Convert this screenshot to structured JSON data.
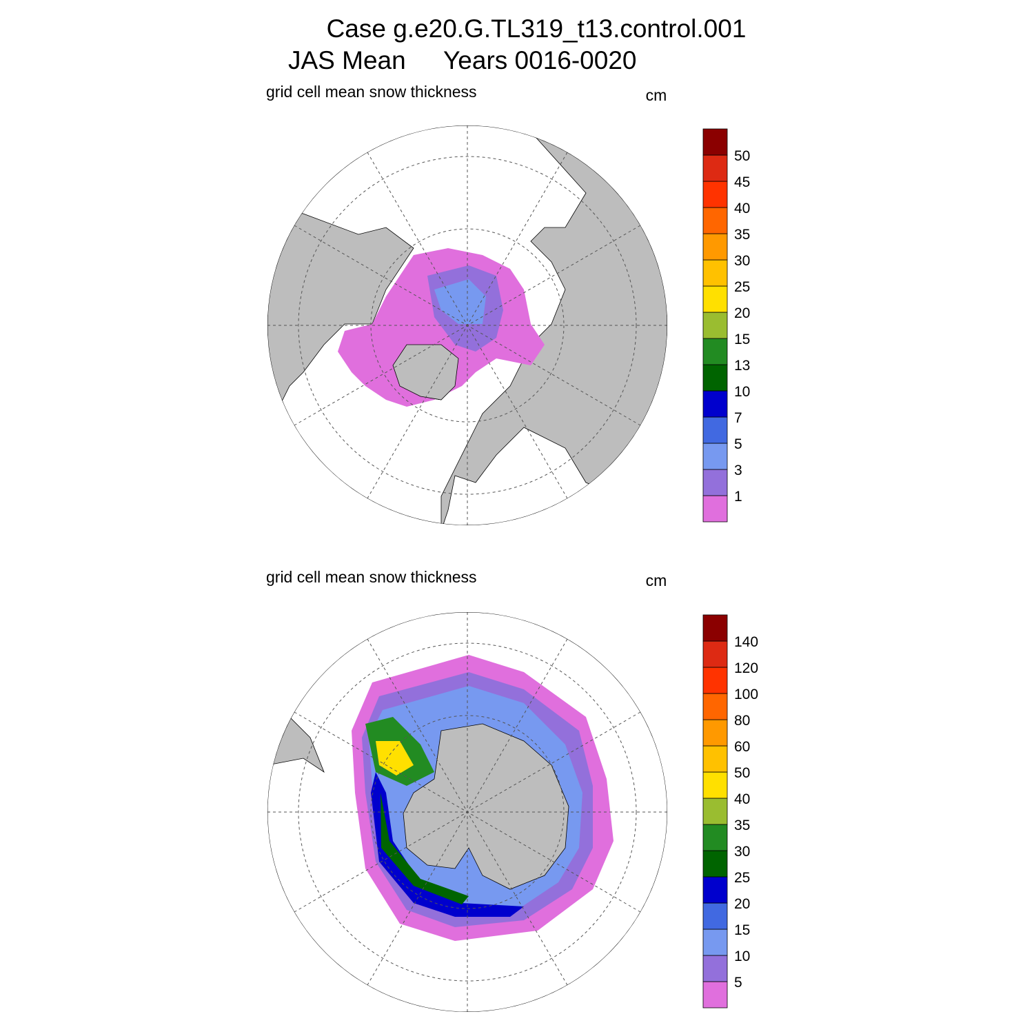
{
  "title": {
    "line1": "Case g.e20.G.TL319_t13.control.001",
    "line2_left": "JAS Mean",
    "line2_right": "Years 0016-0020"
  },
  "panels": [
    {
      "subtitle": "grid cell mean snow thickness",
      "units": "cm",
      "colorbar": {
        "labels": [
          1,
          3,
          5,
          7,
          10,
          13,
          15,
          20,
          25,
          30,
          35,
          40,
          45,
          50
        ],
        "colors": [
          "#e06fdd",
          "#9370db",
          "#7799f0",
          "#4169e1",
          "#0000cd",
          "#006400",
          "#228b22",
          "#9abd30",
          "#ffe000",
          "#ffc100",
          "#ff9900",
          "#ff6600",
          "#ff3300",
          "#dd2a13",
          "#8b0000"
        ]
      }
    },
    {
      "subtitle": "grid cell mean snow thickness",
      "units": "cm",
      "colorbar": {
        "labels": [
          5,
          10,
          15,
          20,
          25,
          30,
          35,
          40,
          50,
          60,
          80,
          100,
          120,
          140
        ],
        "colors": [
          "#e06fdd",
          "#9370db",
          "#7799f0",
          "#4169e1",
          "#0000cd",
          "#006400",
          "#228b22",
          "#9abd30",
          "#ffe000",
          "#ffc100",
          "#ff9900",
          "#ff6600",
          "#ff3300",
          "#dd2a13",
          "#8b0000"
        ]
      }
    }
  ]
}
